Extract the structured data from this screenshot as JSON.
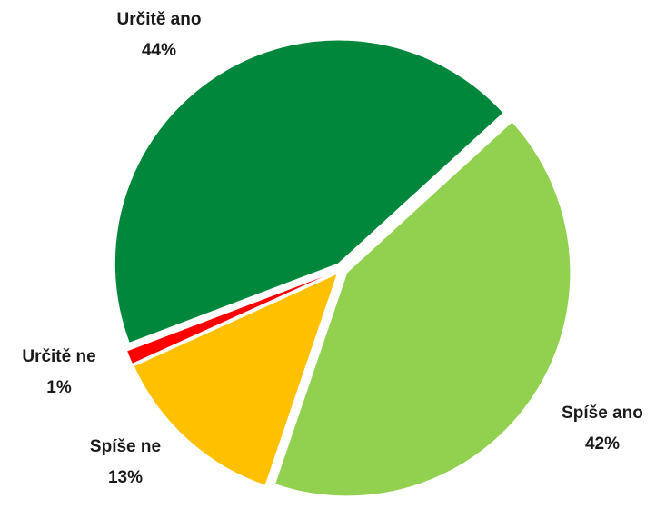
{
  "chart_data": {
    "type": "pie",
    "categories": [
      "Určitě ano",
      "Spíše ano",
      "Spíše ne",
      "Určitě ne"
    ],
    "values": [
      44,
      42,
      13,
      1
    ],
    "value_labels": [
      "44%",
      "42%",
      "13%",
      "1%"
    ],
    "colors": [
      "#00873c",
      "#92d050",
      "#ffc000",
      "#ff0000"
    ]
  }
}
